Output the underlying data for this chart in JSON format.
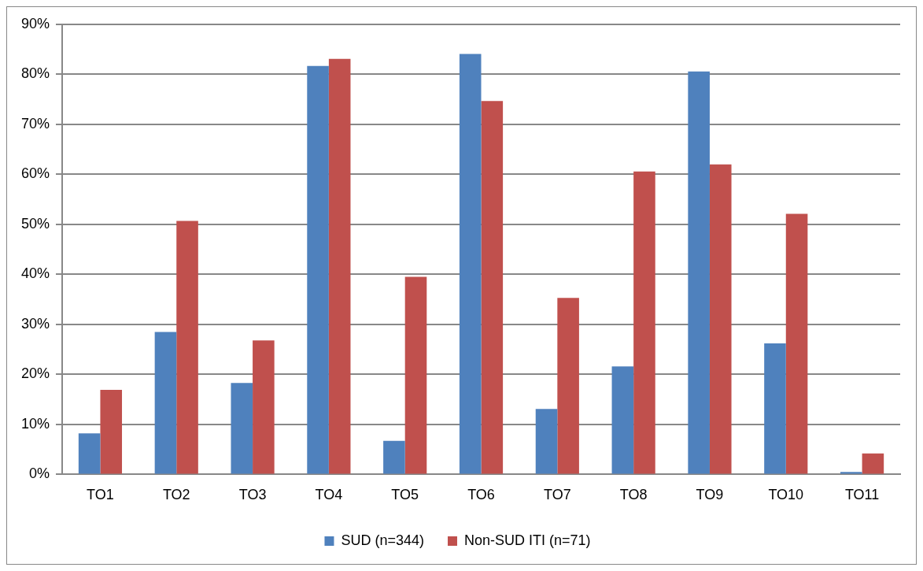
{
  "chart_data": {
    "type": "bar",
    "categories": [
      "TO1",
      "TO2",
      "TO3",
      "TO4",
      "TO5",
      "TO6",
      "TO7",
      "TO8",
      "TO9",
      "TO10",
      "TO11"
    ],
    "series": [
      {
        "name": "SUD (n=344)",
        "color": "#4f81bd",
        "values": [
          8.2,
          28.5,
          18.3,
          81.7,
          6.7,
          84.1,
          13.1,
          21.6,
          80.6,
          26.2,
          0.5
        ]
      },
      {
        "name": "Non-SUD ITI (n=71)",
        "color": "#c0504d",
        "values": [
          16.9,
          50.7,
          26.8,
          83.1,
          39.5,
          74.7,
          35.3,
          60.6,
          62.0,
          52.1,
          4.2
        ]
      }
    ],
    "ylim": [
      0,
      90
    ],
    "yticks": [
      {
        "value": 0,
        "label": "0%"
      },
      {
        "value": 10,
        "label": "10%"
      },
      {
        "value": 20,
        "label": "20%"
      },
      {
        "value": 30,
        "label": "30%"
      },
      {
        "value": 40,
        "label": "40%"
      },
      {
        "value": 50,
        "label": "50%"
      },
      {
        "value": 60,
        "label": "60%"
      },
      {
        "value": 70,
        "label": "70%"
      },
      {
        "value": 80,
        "label": "80%"
      },
      {
        "value": 90,
        "label": "90%"
      }
    ],
    "grid": "y",
    "legend": "bottom"
  }
}
